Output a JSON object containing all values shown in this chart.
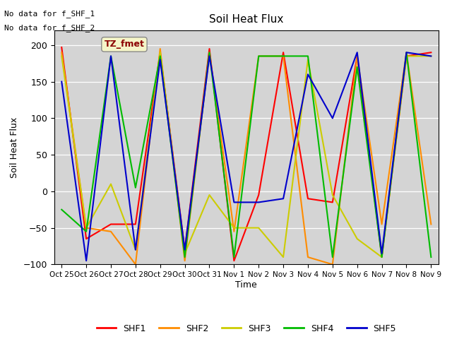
{
  "title": "Soil Heat Flux",
  "ylabel": "Soil Heat Flux",
  "xlabel": "Time",
  "ylim": [
    -100,
    220
  ],
  "yticks": [
    -100,
    -50,
    0,
    50,
    100,
    150,
    200
  ],
  "plot_bg": "#d4d4d4",
  "fig_bg": "#ffffff",
  "text_lines": [
    "No data for f_SHF_1",
    "No data for f_SHF_2"
  ],
  "box_label": "TZ_fmet",
  "xtick_labels": [
    "Oct 25",
    "Oct 26",
    "Oct 27",
    "Oct 28",
    "Oct 29",
    "Oct 30",
    "Oct 31",
    "Nov 1",
    "Nov 2",
    "Nov 3",
    "Nov 4",
    "Nov 5",
    "Nov 6",
    "Nov 7",
    "Nov 8",
    "Nov 9"
  ],
  "series_names": [
    "SHF1",
    "SHF2",
    "SHF3",
    "SHF4",
    "SHF5"
  ],
  "series_colors": [
    "#ff0000",
    "#ff8c00",
    "#cccc00",
    "#00bb00",
    "#0000cc"
  ],
  "SHF1_y": [
    197,
    -65,
    -45,
    -45,
    190,
    -80,
    195,
    -95,
    -5,
    190,
    -10,
    -15,
    185,
    -90,
    185,
    190
  ],
  "SHF2_y": [
    190,
    -50,
    -55,
    -100,
    195,
    -95,
    190,
    -55,
    185,
    185,
    -90,
    -100,
    185,
    -45,
    190,
    -45
  ],
  "SHF3_y": [
    185,
    -50,
    10,
    -80,
    190,
    -85,
    -5,
    -50,
    -50,
    -90,
    180,
    -5,
    -65,
    -90,
    185,
    185
  ],
  "SHF4_y": [
    -25,
    -55,
    185,
    5,
    185,
    -90,
    190,
    -90,
    185,
    185,
    185,
    -90,
    170,
    -90,
    190,
    -90
  ],
  "SHF5_y": [
    150,
    -95,
    185,
    -80,
    180,
    -80,
    185,
    -15,
    -15,
    -10,
    160,
    100,
    190,
    -85,
    190,
    185
  ]
}
